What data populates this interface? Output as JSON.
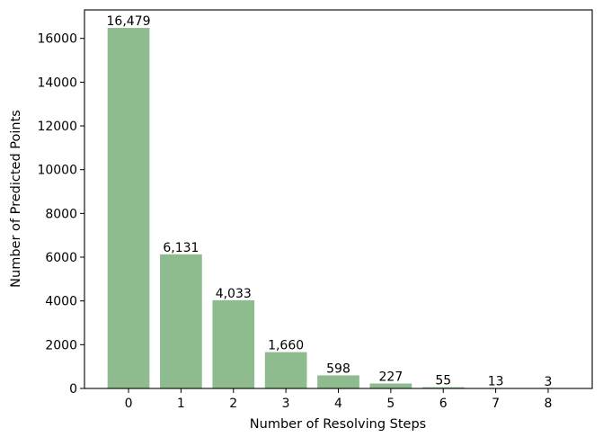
{
  "chart_data": {
    "type": "bar",
    "title": "",
    "xlabel": "Number of Resolving Steps",
    "ylabel": "Number of Predicted Points",
    "categories": [
      "0",
      "1",
      "2",
      "3",
      "4",
      "5",
      "6",
      "7",
      "8"
    ],
    "values": [
      16479,
      6131,
      4033,
      1660,
      598,
      227,
      55,
      13,
      3
    ],
    "data_labels": [
      "16,479",
      "6,131",
      "4,033",
      "1,660",
      "598",
      "227",
      "55",
      "13",
      "3"
    ],
    "yticks": [
      0,
      2000,
      4000,
      6000,
      8000,
      10000,
      12000,
      14000,
      16000
    ],
    "ytick_labels": [
      "0",
      "2000",
      "4000",
      "6000",
      "8000",
      "10000",
      "12000",
      "14000",
      "16000"
    ],
    "xlim": [
      -0.84,
      8.84
    ],
    "ylim": [
      0,
      17303
    ],
    "grid": false,
    "bar_color": "#8fbc8f"
  }
}
